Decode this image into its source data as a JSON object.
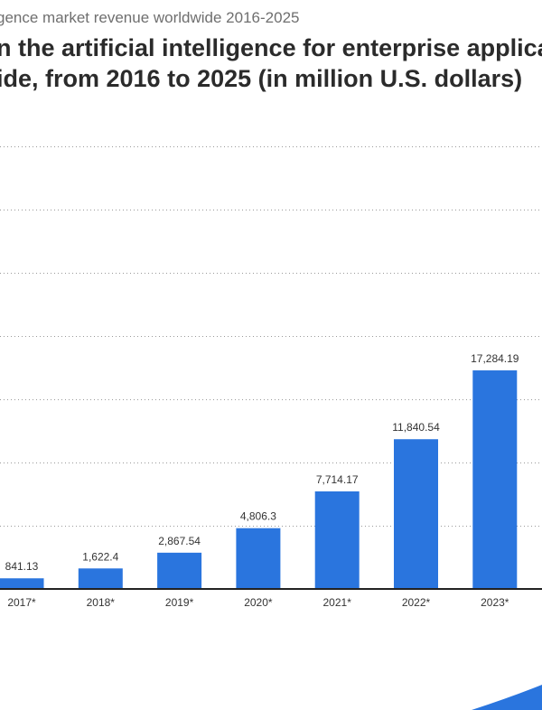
{
  "page": {
    "subtitle": "gence market revenue worldwide 2016-2025",
    "title_line1": "n the artificial intelligence for enterprise applica",
    "title_line2": "ide, from 2016 to 2025 (in million U.S. dollars)"
  },
  "colors": {
    "bar": "#2a75de",
    "text": "#333333",
    "title": "#2b2b2b",
    "subtitle": "#6f6f6f"
  },
  "chart_data": {
    "type": "bar",
    "title": "n the artificial intelligence for enterprise applica ide, from 2016 to 2025 (in million U.S. dollars)",
    "categories": [
      "2017*",
      "2018*",
      "2019*",
      "2020*",
      "2021*",
      "2022*",
      "2023*"
    ],
    "values": [
      841.13,
      1622.4,
      2867.54,
      4806.3,
      7714.17,
      11840.54,
      17284.19
    ],
    "value_labels": [
      "841.13",
      "1,622.4",
      "2,867.54",
      "4,806.3",
      "7,714.17",
      "11,840.54",
      "17,284.19"
    ],
    "ylim": [
      0,
      35000
    ],
    "grid": true,
    "xlabel": "",
    "ylabel": ""
  }
}
